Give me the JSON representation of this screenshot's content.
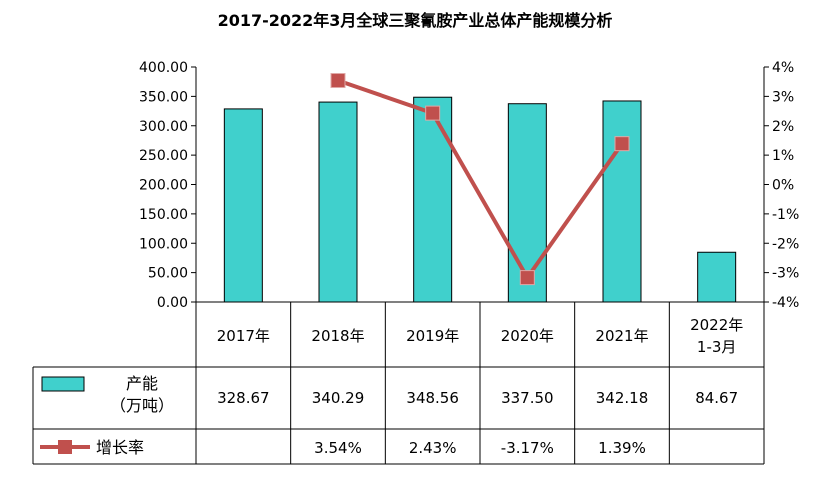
{
  "chart_data": {
    "type": "bar",
    "title": "2017-2022年3月全球三聚氰胺产业总体产能规模分析",
    "categories": [
      "2017年",
      "2018年",
      "2019年",
      "2020年",
      "2021年",
      "2022年\n1-3月"
    ],
    "y_left": {
      "ylim": [
        0,
        400
      ],
      "ticks": [
        "0.00",
        "50.00",
        "100.00",
        "150.00",
        "200.00",
        "250.00",
        "300.00",
        "350.00",
        "400.00"
      ]
    },
    "y_right": {
      "ylim": [
        -4,
        4
      ],
      "ticks": [
        "-4%",
        "-3%",
        "-2%",
        "-1%",
        "0%",
        "1%",
        "2%",
        "3%",
        "4%"
      ]
    },
    "series": [
      {
        "name": "产能（万吨）",
        "legend_lines": [
          "产能",
          "（万吨）"
        ],
        "type": "bar",
        "axis": "left",
        "values": [
          328.67,
          340.29,
          348.56,
          337.5,
          342.18,
          84.67
        ],
        "labels": [
          "328.67",
          "340.29",
          "348.56",
          "337.50",
          "342.18",
          "84.67"
        ],
        "color": "#40D0CC"
      },
      {
        "name": "增长率",
        "legend_lines": [
          "增长率"
        ],
        "type": "line",
        "axis": "right",
        "values": [
          null,
          3.54,
          2.43,
          -3.17,
          1.39,
          null
        ],
        "labels": [
          "",
          "3.54%",
          "2.43%",
          "-3.17%",
          "1.39%",
          ""
        ],
        "color": "#C0504D"
      }
    ],
    "grid": false,
    "legend": "data-table"
  }
}
